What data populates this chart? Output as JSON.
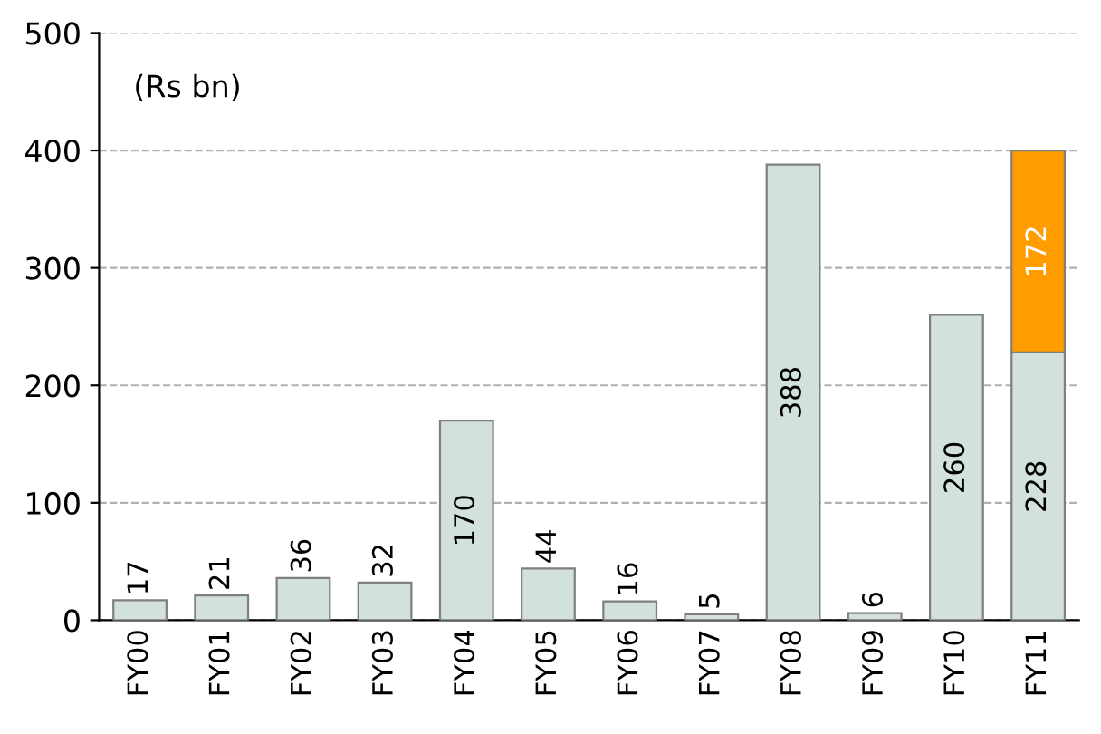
{
  "chart_data": {
    "type": "bar",
    "stacked": true,
    "annotations": [
      "(Rs bn)"
    ],
    "categories": [
      "FY00",
      "FY01",
      "FY02",
      "FY03",
      "FY04",
      "FY05",
      "FY06",
      "FY07",
      "FY08",
      "FY09",
      "FY10",
      "FY11"
    ],
    "series": [
      {
        "color": "#d3e1dc",
        "values": [
          17,
          21,
          36,
          32,
          170,
          44,
          16,
          5,
          388,
          6,
          260,
          228
        ]
      },
      {
        "color": "#ff9c00",
        "values": [
          null,
          null,
          null,
          null,
          null,
          null,
          null,
          null,
          null,
          null,
          null,
          172
        ]
      }
    ],
    "ylim": [
      0,
      500
    ],
    "yticks": [
      0,
      100,
      200,
      300,
      400,
      500
    ],
    "grid": "y",
    "data_labels": true
  }
}
